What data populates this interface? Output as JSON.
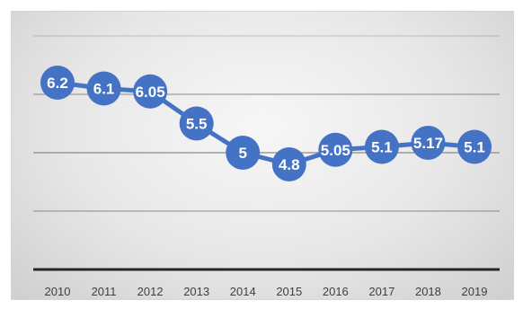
{
  "chart_data": {
    "type": "line",
    "title": "",
    "xlabel": "",
    "ylabel": "",
    "categories": [
      "2010",
      "2011",
      "2012",
      "2013",
      "2014",
      "2015",
      "2016",
      "2017",
      "2018",
      "2019"
    ],
    "series": [
      {
        "values": [
          6.2,
          6.1,
          6.05,
          5.5,
          5,
          4.8,
          5.05,
          5.1,
          5.17,
          5.1
        ],
        "labels": [
          "6.2",
          "6.1",
          "6.05",
          "5.5",
          "5",
          "4.8",
          "5.05",
          "5.1",
          "5.17",
          "5.1"
        ]
      }
    ],
    "ylim": [
      3,
      7
    ],
    "grid": true,
    "legend": "none",
    "colors": {
      "series": "#4472C4",
      "gridline": "#7f7f7f",
      "axis": "#262626",
      "label": "#ffffff"
    }
  }
}
